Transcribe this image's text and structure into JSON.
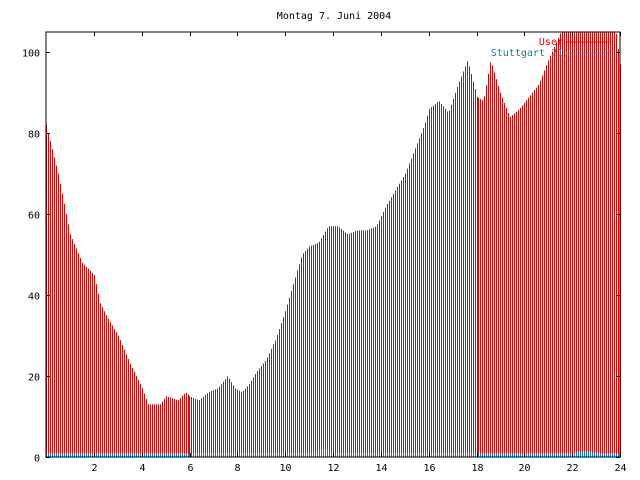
{
  "chart_data": {
    "type": "bar",
    "title": "Montag 7. Juni 2004",
    "xlabel": "",
    "ylabel": "",
    "xlim": [
      0,
      24
    ],
    "ylim": [
      0,
      105
    ],
    "xticks": [
      2,
      4,
      6,
      8,
      10,
      12,
      14,
      16,
      18,
      20,
      22,
      24
    ],
    "yticks": [
      0,
      20,
      40,
      60,
      80,
      100
    ],
    "grid": false,
    "legend_position": "top-right",
    "series": [
      {
        "name": "User",
        "color": "#e00000",
        "points": [
          [
            0.0,
            82
          ],
          [
            0.5,
            70
          ],
          [
            1.0,
            55
          ],
          [
            1.5,
            48
          ],
          [
            2.0,
            45
          ],
          [
            2.25,
            38
          ],
          [
            2.5,
            35
          ],
          [
            3.0,
            30
          ],
          [
            3.5,
            23
          ],
          [
            4.0,
            17
          ],
          [
            4.25,
            13
          ],
          [
            4.75,
            13
          ],
          [
            5.0,
            15
          ],
          [
            5.5,
            14
          ],
          [
            5.8,
            16
          ],
          [
            6.0,
            15
          ],
          [
            6.4,
            14
          ],
          [
            6.8,
            16
          ],
          [
            7.2,
            17
          ],
          [
            7.6,
            20
          ],
          [
            7.9,
            17
          ],
          [
            8.2,
            16
          ],
          [
            8.5,
            18
          ],
          [
            8.8,
            21
          ],
          [
            9.2,
            24
          ],
          [
            9.6,
            29
          ],
          [
            10.0,
            36
          ],
          [
            10.4,
            44
          ],
          [
            10.7,
            50
          ],
          [
            11.0,
            52
          ],
          [
            11.4,
            53
          ],
          [
            11.8,
            57
          ],
          [
            12.2,
            57
          ],
          [
            12.6,
            55
          ],
          [
            13.0,
            56
          ],
          [
            13.4,
            56
          ],
          [
            13.8,
            57
          ],
          [
            14.2,
            62
          ],
          [
            14.6,
            66
          ],
          [
            15.0,
            70
          ],
          [
            15.4,
            76
          ],
          [
            15.8,
            82
          ],
          [
            16.0,
            86
          ],
          [
            16.4,
            88
          ],
          [
            16.8,
            85
          ],
          [
            17.2,
            92
          ],
          [
            17.6,
            98
          ],
          [
            18.0,
            89
          ],
          [
            18.3,
            88
          ],
          [
            18.6,
            98
          ],
          [
            19.0,
            90
          ],
          [
            19.4,
            84
          ],
          [
            19.8,
            86
          ],
          [
            20.2,
            89
          ],
          [
            20.6,
            92
          ],
          [
            21.0,
            98
          ],
          [
            21.3,
            102
          ],
          [
            21.6,
            106
          ],
          [
            22.0,
            106
          ],
          [
            22.5,
            106
          ],
          [
            23.0,
            106
          ],
          [
            23.5,
            106
          ],
          [
            23.8,
            106
          ],
          [
            24.0,
            97
          ]
        ]
      },
      {
        "name": "Stuttgart 21",
        "color": "#0080c0",
        "points": [
          [
            0.0,
            1
          ],
          [
            1.0,
            1
          ],
          [
            2.0,
            1
          ],
          [
            3.0,
            1
          ],
          [
            4.0,
            1
          ],
          [
            5.0,
            1
          ],
          [
            6.0,
            1
          ],
          [
            7.0,
            1
          ],
          [
            8.0,
            1
          ],
          [
            9.0,
            1
          ],
          [
            10.0,
            1
          ],
          [
            11.0,
            1
          ],
          [
            11.4,
            2
          ],
          [
            11.8,
            2
          ],
          [
            12.0,
            1
          ],
          [
            13.0,
            1
          ],
          [
            14.0,
            1
          ],
          [
            15.0,
            1
          ],
          [
            16.0,
            1
          ],
          [
            17.0,
            1
          ],
          [
            18.0,
            1
          ],
          [
            19.0,
            1
          ],
          [
            20.0,
            1
          ],
          [
            21.0,
            1
          ],
          [
            22.0,
            1
          ],
          [
            22.6,
            1.5
          ],
          [
            23.0,
            1
          ],
          [
            24.0,
            1
          ]
        ]
      }
    ]
  }
}
